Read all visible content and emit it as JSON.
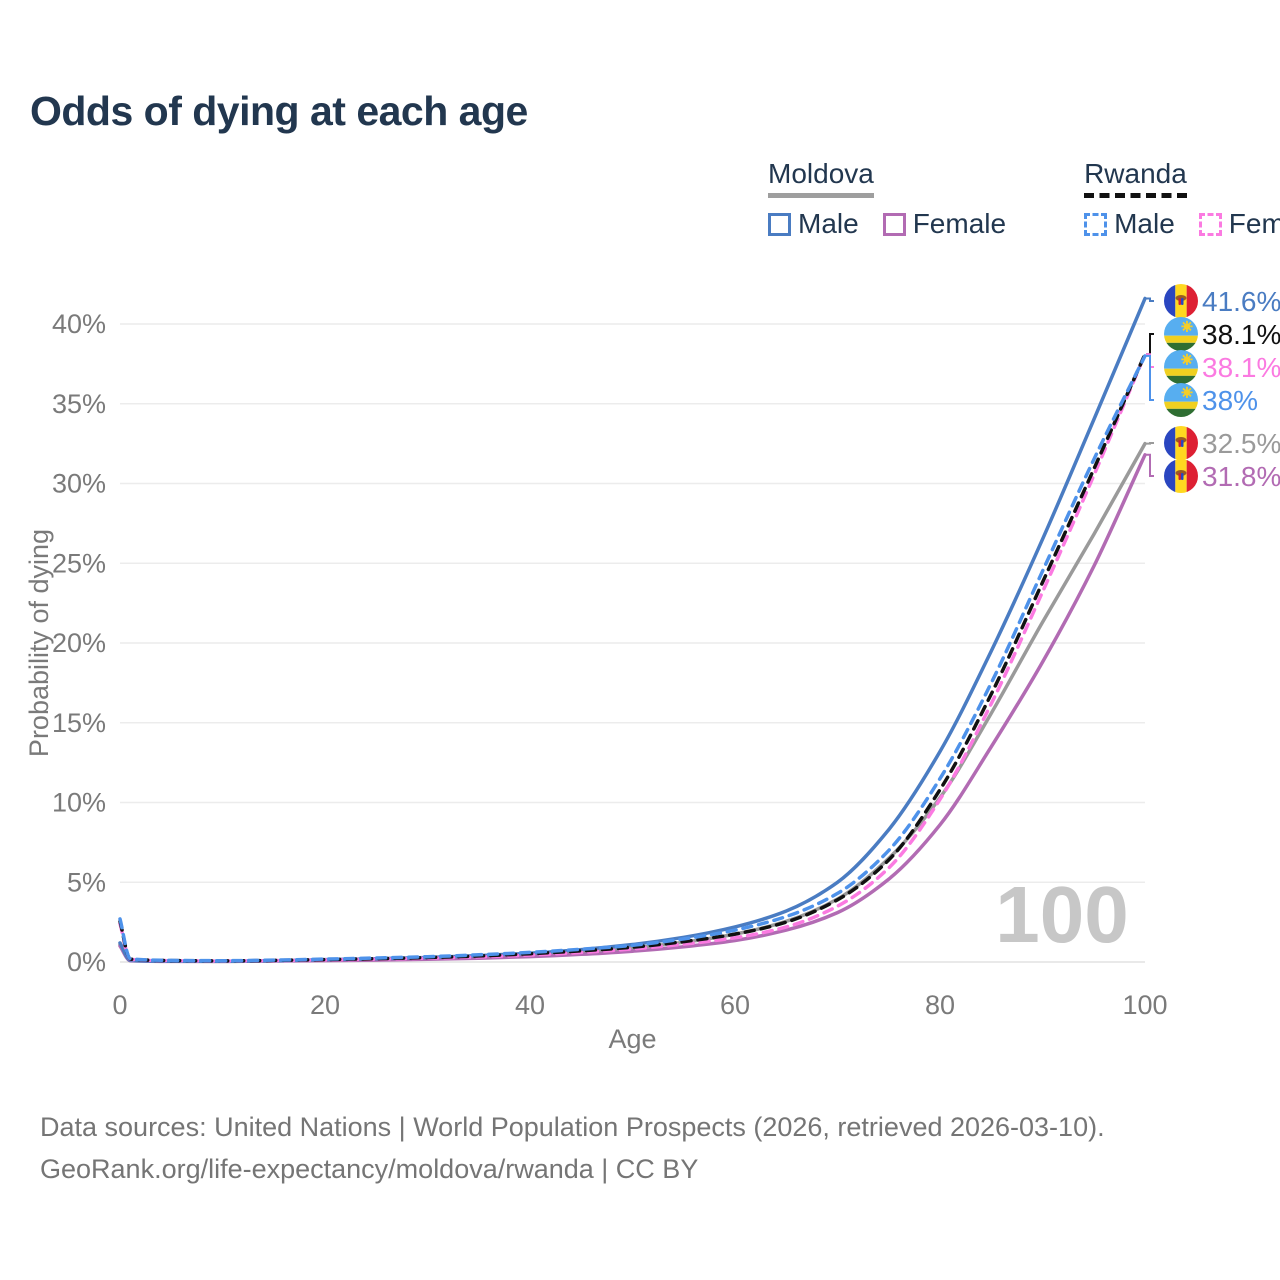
{
  "header": {
    "title": "Odds of dying at each age"
  },
  "legend": {
    "groups": [
      {
        "name": "Moldova",
        "line_style": "solid",
        "underline_color": "#9e9e9e",
        "items": [
          {
            "label": "Male",
            "color": "#4a7cc2",
            "dashed": false
          },
          {
            "label": "Female",
            "color": "#b26bb3",
            "dashed": false
          }
        ]
      },
      {
        "name": "Rwanda",
        "line_style": "dashed",
        "underline_color": "#111111",
        "items": [
          {
            "label": "Male",
            "color": "#4e92ea",
            "dashed": true
          },
          {
            "label": "Female",
            "color": "#fb7ae1",
            "dashed": true
          }
        ]
      }
    ]
  },
  "chart_data": {
    "type": "line",
    "title": "Odds of dying at each age",
    "xlabel": "Age",
    "ylabel": "Probability of dying",
    "xlim": [
      0,
      100
    ],
    "ylim_pct": [
      0,
      42
    ],
    "grid": "horizontal-only",
    "watermark": "100",
    "x_ticks": [
      0,
      20,
      40,
      60,
      80,
      100
    ],
    "y_ticks_pct": [
      0,
      5,
      10,
      15,
      20,
      25,
      30,
      35,
      40
    ],
    "y_tick_labels": [
      "0%",
      "5%",
      "10%",
      "15%",
      "20%",
      "25%",
      "30%",
      "35%",
      "40%"
    ],
    "ages": [
      0,
      1,
      5,
      10,
      15,
      20,
      25,
      30,
      35,
      40,
      45,
      50,
      55,
      60,
      65,
      70,
      75,
      80,
      85,
      90,
      95,
      100
    ],
    "series": [
      {
        "id": "moldova-male",
        "country": "Moldova",
        "group": "Male",
        "flag": "md",
        "color": "#4a7cc2",
        "dashed": false,
        "end_label": "41.6%",
        "values_pct": [
          1.2,
          0.1,
          0.05,
          0.05,
          0.08,
          0.15,
          0.2,
          0.28,
          0.4,
          0.55,
          0.78,
          1.1,
          1.55,
          2.2,
          3.2,
          5.0,
          8.3,
          13.2,
          19.5,
          26.5,
          34.0,
          41.6
        ]
      },
      {
        "id": "rwanda-total",
        "country": "Rwanda",
        "group": "Total",
        "flag": "rw",
        "color": "#111111",
        "dashed": true,
        "end_label": "38.1%",
        "values_pct": [
          2.55,
          0.18,
          0.09,
          0.07,
          0.1,
          0.15,
          0.21,
          0.28,
          0.38,
          0.52,
          0.7,
          0.93,
          1.28,
          1.75,
          2.5,
          3.9,
          6.4,
          10.8,
          16.8,
          23.8,
          30.9,
          38.1
        ]
      },
      {
        "id": "rwanda-female",
        "country": "Rwanda",
        "group": "Female",
        "flag": "rw",
        "color": "#fb7ae1",
        "dashed": true,
        "end_label": "38.1%",
        "values_pct": [
          2.4,
          0.16,
          0.08,
          0.06,
          0.09,
          0.13,
          0.18,
          0.24,
          0.32,
          0.44,
          0.6,
          0.82,
          1.12,
          1.52,
          2.2,
          3.5,
          5.9,
          10.2,
          16.2,
          23.2,
          30.5,
          38.1
        ]
      },
      {
        "id": "rwanda-male",
        "country": "Rwanda",
        "group": "Male",
        "flag": "rw",
        "color": "#4e92ea",
        "dashed": true,
        "end_label": "38%",
        "values_pct": [
          2.7,
          0.2,
          0.1,
          0.08,
          0.12,
          0.18,
          0.25,
          0.33,
          0.45,
          0.6,
          0.8,
          1.05,
          1.45,
          2.0,
          2.85,
          4.3,
          7.0,
          11.5,
          17.5,
          24.5,
          31.5,
          38.0
        ]
      },
      {
        "id": "moldova-total",
        "country": "Moldova",
        "group": "Total",
        "flag": "md",
        "color": "#9a9a9a",
        "dashed": false,
        "end_label": "32.5%",
        "values_pct": [
          1.1,
          0.09,
          0.05,
          0.04,
          0.07,
          0.12,
          0.16,
          0.23,
          0.32,
          0.45,
          0.63,
          0.88,
          1.24,
          1.75,
          2.55,
          3.95,
          6.5,
          10.3,
          15.6,
          21.3,
          26.8,
          32.5
        ]
      },
      {
        "id": "moldova-female",
        "country": "Moldova",
        "group": "Female",
        "flag": "md",
        "color": "#b26bb3",
        "dashed": false,
        "end_label": "31.8%",
        "values_pct": [
          1.0,
          0.08,
          0.04,
          0.04,
          0.06,
          0.09,
          0.12,
          0.17,
          0.24,
          0.34,
          0.48,
          0.68,
          0.96,
          1.35,
          2.0,
          3.1,
          5.2,
          8.6,
          13.5,
          18.8,
          24.8,
          31.8
        ]
      }
    ],
    "flag_colors": {
      "md": {
        "blue": "#2a46c0",
        "yellow": "#ffd820",
        "red": "#dd2033",
        "emblem": "#9a5b23"
      },
      "rw": {
        "blue": "#57aef0",
        "yellow": "#f0d020",
        "green": "#2f6e32",
        "sun": "#f7ce27"
      }
    },
    "style": {
      "grid_color": "#ececec",
      "baseline_color": "#e2e2e2",
      "axis_text_color": "#7a7a7a",
      "watermark_color": "#c7c7c7"
    }
  },
  "footer": {
    "line1": "Data sources: United Nations | World Population Prospects (2026, retrieved 2026-03-10).",
    "line2": "GeoRank.org/life-expectancy/moldova/rwanda | CC BY"
  }
}
